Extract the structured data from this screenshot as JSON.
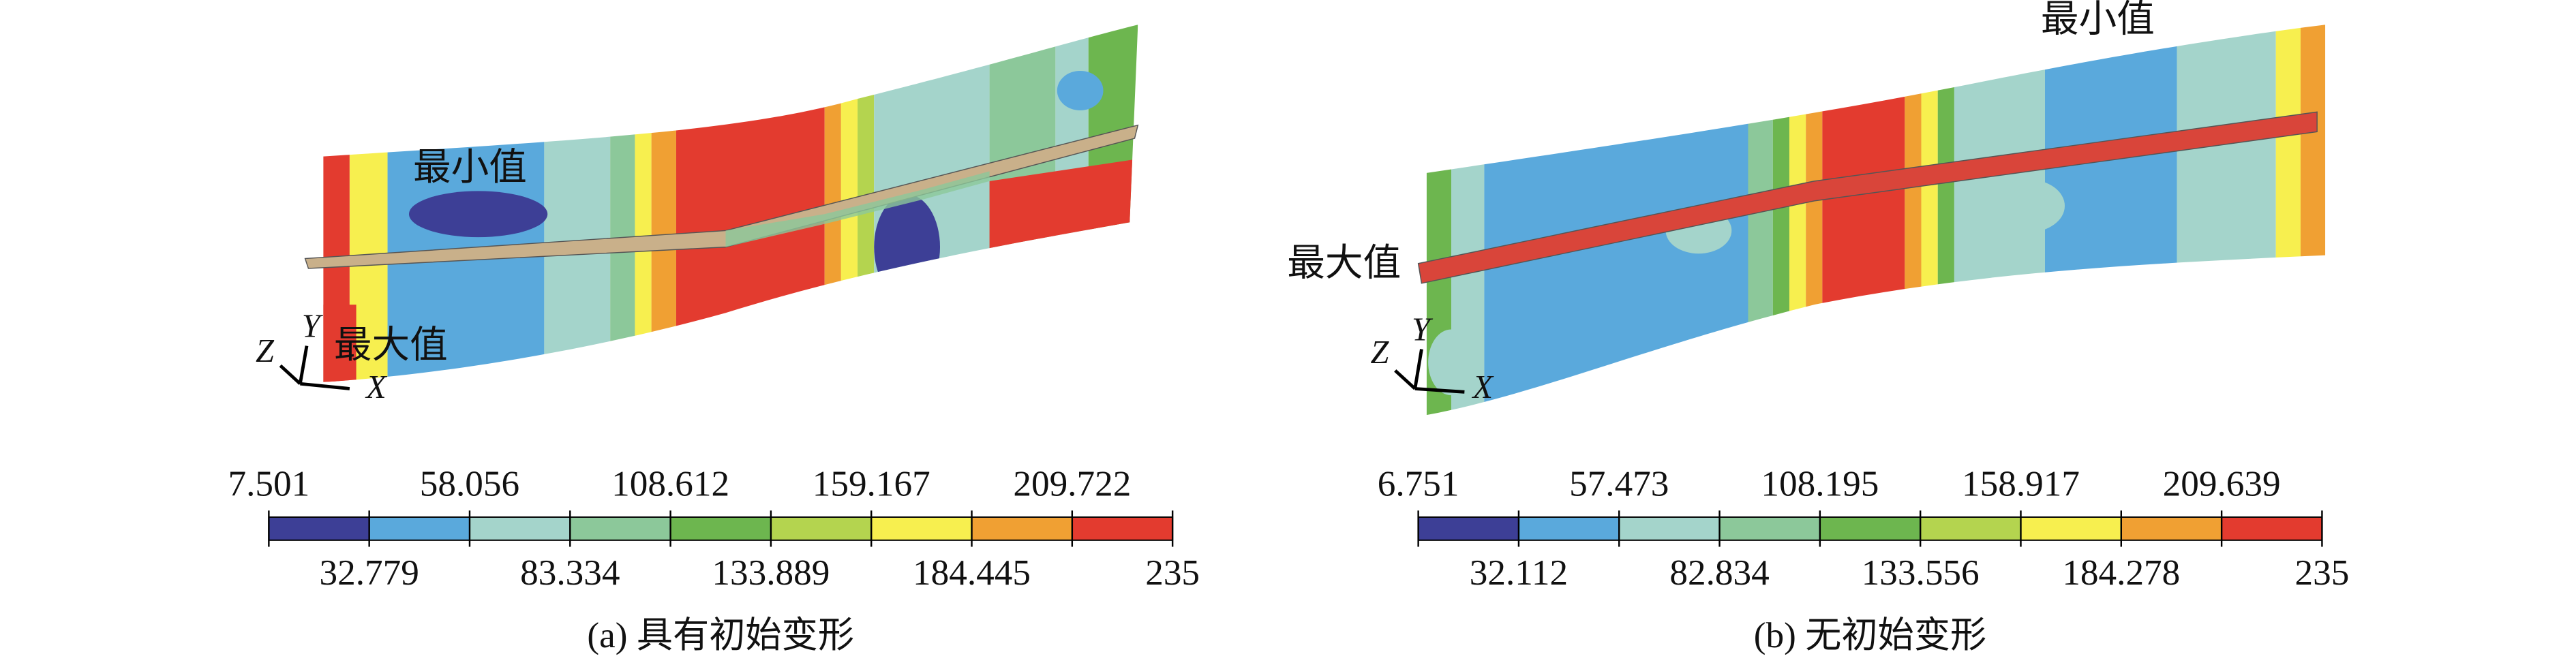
{
  "panels": [
    {
      "caption": "(a) 具有初始变形",
      "annotations": {
        "min": "最小值",
        "max": "最大值"
      },
      "axis_labels": {
        "x": "X",
        "y": "Y",
        "z": "Z"
      },
      "colorbar": {
        "lim": [
          7.501,
          235
        ],
        "ticks": [
          7.501,
          32.779,
          58.056,
          83.334,
          108.612,
          133.889,
          159.167,
          184.445,
          209.722,
          235
        ],
        "colors": [
          "#3d3f96",
          "#5aa9dc",
          "#a4d4cb",
          "#8cc89a",
          "#6db64f",
          "#b4d44f",
          "#f7ef4f",
          "#f0a033",
          "#e33b2f"
        ]
      }
    },
    {
      "caption": "(b) 无初始变形",
      "annotations": {
        "min": "最小值",
        "max": "最大值"
      },
      "axis_labels": {
        "x": "X",
        "y": "Y",
        "z": "Z"
      },
      "colorbar": {
        "lim": [
          6.751,
          235
        ],
        "ticks": [
          6.751,
          32.112,
          57.473,
          82.834,
          108.195,
          133.556,
          158.917,
          184.278,
          209.639,
          235
        ],
        "colors": [
          "#3d3f96",
          "#5aa9dc",
          "#a4d4cb",
          "#8cc89a",
          "#6db64f",
          "#b4d44f",
          "#f7ef4f",
          "#f0a033",
          "#e33b2f"
        ]
      }
    }
  ]
}
